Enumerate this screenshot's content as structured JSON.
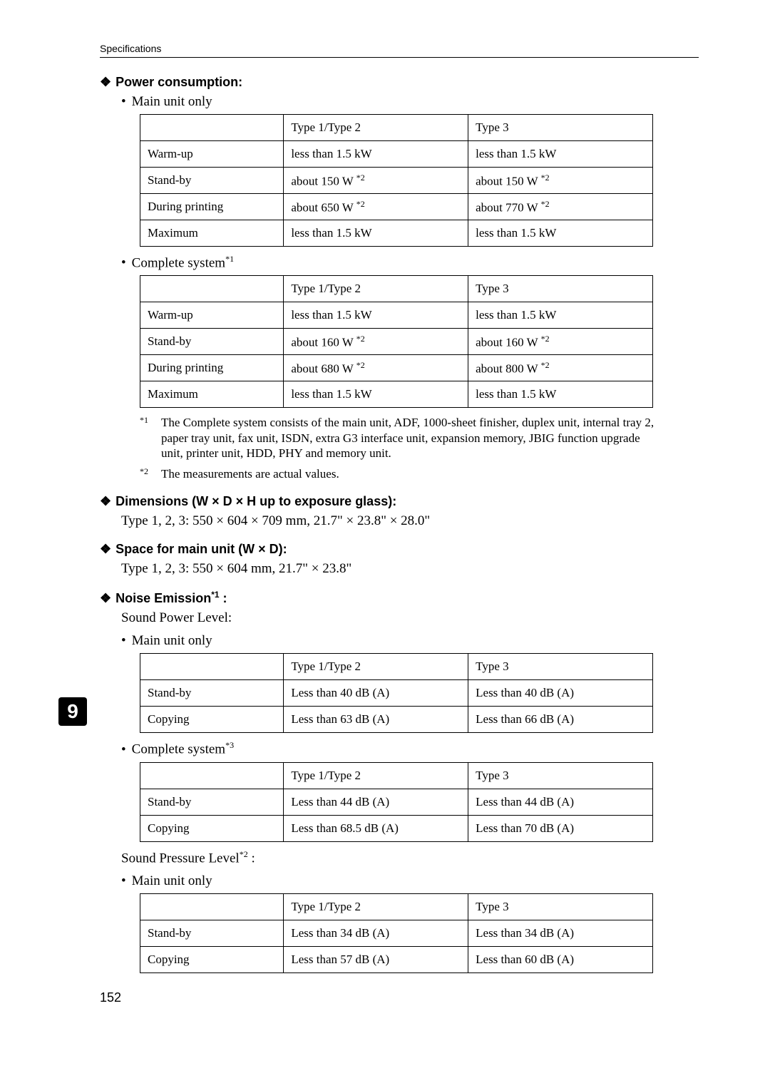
{
  "running_head": "Specifications",
  "page_number": "152",
  "tab_number": "9",
  "sections": {
    "power": {
      "heading": "Power consumption:",
      "bullet_main": "Main unit only",
      "bullet_complete": "Complete system",
      "bullet_complete_sup": "*1",
      "table_main": {
        "h1": "Type 1/Type 2",
        "h2": "Type 3",
        "rows": [
          {
            "label": "Warm-up",
            "c1": "less than 1.5 kW",
            "c2": "less than 1.5 kW"
          },
          {
            "label": "Stand-by",
            "c1": "about 150 W",
            "c1_sup": "*2",
            "c2": "about 150 W",
            "c2_sup": "*2"
          },
          {
            "label": "During printing",
            "c1": "about 650 W",
            "c1_sup": "*2",
            "c2": "about 770 W",
            "c2_sup": "*2"
          },
          {
            "label": "Maximum",
            "c1": "less than 1.5 kW",
            "c2": "less than 1.5 kW"
          }
        ]
      },
      "table_complete": {
        "h1": "Type 1/Type 2",
        "h2": "Type 3",
        "rows": [
          {
            "label": "Warm-up",
            "c1": "less than 1.5 kW",
            "c2": "less than 1.5 kW"
          },
          {
            "label": "Stand-by",
            "c1": "about 160 W",
            "c1_sup": "*2",
            "c2": "about 160 W",
            "c2_sup": "*2"
          },
          {
            "label": "During printing",
            "c1": "about 680 W",
            "c1_sup": "*2",
            "c2": "about 800 W",
            "c2_sup": "*2"
          },
          {
            "label": "Maximum",
            "c1": "less than 1.5 kW",
            "c2": "less than 1.5 kW"
          }
        ]
      },
      "fn1_mark": "*1",
      "fn1": "The Complete system consists of the main unit, ADF, 1000-sheet finisher, duplex unit, internal tray 2, paper tray unit, fax unit, ISDN, extra G3 interface unit, expansion memory, JBIG function upgrade unit, printer unit, HDD, PHY and memory unit.",
      "fn2_mark": "*2",
      "fn2": "The measurements are actual values."
    },
    "dimensions": {
      "heading": "Dimensions (W × D × H up to exposure glass):",
      "body": "Type 1, 2, 3: 550 × 604 × 709 mm, 21.7\" × 23.8\" × 28.0\""
    },
    "space": {
      "heading": "Space for main unit (W × D):",
      "body": "Type 1, 2, 3: 550 × 604 mm, 21.7\" × 23.8\""
    },
    "noise": {
      "heading": "Noise Emission",
      "heading_sup": "*1",
      "heading_tail": " :",
      "power_level": "Sound Power Level:",
      "bullet_main": "Main unit only",
      "bullet_complete": "Complete system",
      "bullet_complete_sup": "*3",
      "pressure_level": "Sound Pressure Level",
      "pressure_level_sup": "*2",
      "pressure_level_tail": " :",
      "table_power_main": {
        "h1": "Type 1/Type 2",
        "h2": "Type 3",
        "rows": [
          {
            "label": "Stand-by",
            "c1": "Less than 40 dB (A)",
            "c2": "Less than 40 dB (A)"
          },
          {
            "label": "Copying",
            "c1": "Less than 63 dB (A)",
            "c2": "Less than 66 dB (A)"
          }
        ]
      },
      "table_power_complete": {
        "h1": "Type 1/Type 2",
        "h2": "Type 3",
        "rows": [
          {
            "label": "Stand-by",
            "c1": "Less than 44 dB (A)",
            "c2": "Less than 44 dB (A)"
          },
          {
            "label": "Copying",
            "c1": "Less than 68.5 dB (A)",
            "c2": "Less than 70 dB (A)"
          }
        ]
      },
      "table_pressure_main": {
        "h1": "Type 1/Type 2",
        "h2": "Type 3",
        "rows": [
          {
            "label": "Stand-by",
            "c1": "Less than 34 dB (A)",
            "c2": "Less than 34 dB (A)"
          },
          {
            "label": "Copying",
            "c1": "Less than 57 dB (A)",
            "c2": "Less than 60 dB (A)"
          }
        ]
      }
    }
  }
}
